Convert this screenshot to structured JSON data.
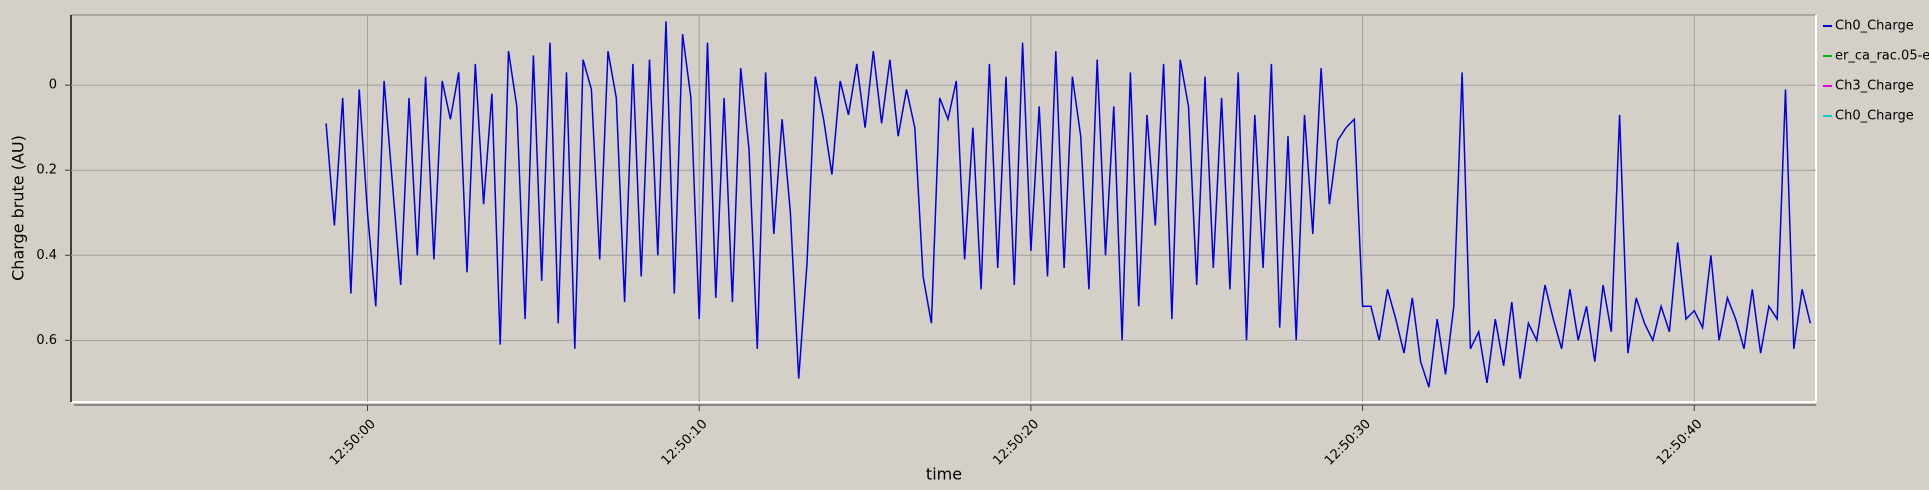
{
  "chart_data": {
    "type": "line",
    "ylabel": "Charge brute (AU)",
    "xlabel": "time",
    "xlim": [
      -8.94,
      43.67
    ],
    "ylim": [
      -0.745,
      0.165
    ],
    "xticks": [
      {
        "value": 0,
        "label": "12:50:00"
      },
      {
        "value": 10,
        "label": "12:50:10"
      },
      {
        "value": 20,
        "label": "12:50:20"
      },
      {
        "value": 30,
        "label": "12:50:30"
      },
      {
        "value": 40,
        "label": "12:50:40"
      }
    ],
    "yticks": [
      {
        "value": -0.6,
        "label": "0.6"
      },
      {
        "value": -0.4,
        "label": "0.4"
      },
      {
        "value": -0.2,
        "label": "0.2"
      },
      0
    ],
    "grid": true,
    "x": [
      -1.25,
      -1,
      -0.75,
      -0.5,
      -0.25,
      0,
      0.25,
      0.5,
      0.75,
      1,
      1.25,
      1.5,
      1.75,
      2,
      2.25,
      2.5,
      2.75,
      3,
      3.25,
      3.5,
      3.75,
      4,
      4.25,
      4.5,
      4.75,
      5,
      5.25,
      5.5,
      5.75,
      6,
      6.25,
      6.5,
      6.75,
      7,
      7.25,
      7.5,
      7.75,
      8,
      8.25,
      8.5,
      8.75,
      9,
      9.25,
      9.5,
      9.75,
      10,
      10.25,
      10.5,
      10.75,
      11,
      11.25,
      11.5,
      11.75,
      12,
      12.25,
      12.5,
      12.75,
      13,
      13.25,
      13.5,
      13.75,
      14,
      14.25,
      14.5,
      14.75,
      15,
      15.25,
      15.5,
      15.75,
      16,
      16.25,
      16.5,
      16.75,
      17,
      17.25,
      17.5,
      17.75,
      18,
      18.25,
      18.5,
      18.75,
      19,
      19.25,
      19.5,
      19.75,
      20,
      20.25,
      20.5,
      20.75,
      21,
      21.25,
      21.5,
      21.75,
      22,
      22.25,
      22.5,
      22.75,
      23,
      23.25,
      23.5,
      23.75,
      24,
      24.25,
      24.5,
      24.75,
      25,
      25.25,
      25.5,
      25.75,
      26,
      26.25,
      26.5,
      26.75,
      27,
      27.25,
      27.5,
      27.75,
      28,
      28.25,
      28.5,
      28.75,
      29,
      29.25,
      29.5,
      29.75,
      30,
      30.25,
      30.5,
      30.75,
      31,
      31.25,
      31.5,
      31.75,
      32,
      32.25,
      32.5,
      32.75,
      33,
      33.25,
      33.5,
      33.75,
      34,
      34.25,
      34.5,
      34.75,
      35,
      35.25,
      35.5,
      35.75,
      36,
      36.25,
      36.5,
      36.75,
      37,
      37.25,
      37.5,
      37.75,
      38,
      38.25,
      38.5,
      38.75,
      39,
      39.25,
      39.5,
      39.75,
      40,
      40.25,
      40.5,
      40.75,
      41,
      41.25,
      41.5,
      41.75,
      42,
      42.25,
      42.5,
      42.75,
      43,
      43.25,
      43.5
    ],
    "series": [
      {
        "name": "Ch0_Charge",
        "color": "#0000e0",
        "values": [
          -0.09,
          -0.33,
          -0.03,
          -0.49,
          -0.01,
          -0.3,
          -0.52,
          0.01,
          -0.23,
          -0.47,
          -0.03,
          -0.4,
          0.02,
          -0.41,
          0.01,
          -0.08,
          0.03,
          -0.44,
          0.05,
          -0.28,
          -0.02,
          -0.61,
          0.08,
          -0.05,
          -0.55,
          0.07,
          -0.46,
          0.1,
          -0.56,
          0.03,
          -0.62,
          0.06,
          -0.01,
          -0.41,
          0.08,
          -0.03,
          -0.51,
          0.05,
          -0.45,
          0.06,
          -0.4,
          0.15,
          -0.49,
          0.12,
          -0.03,
          -0.55,
          0.1,
          -0.5,
          -0.03,
          -0.51,
          0.04,
          -0.15,
          -0.62,
          0.03,
          -0.35,
          -0.08,
          -0.3,
          -0.69,
          -0.42,
          0.02,
          -0.08,
          -0.21,
          0.01,
          -0.07,
          0.05,
          -0.1,
          0.08,
          -0.09,
          0.06,
          -0.12,
          -0.01,
          -0.1,
          -0.45,
          -0.56,
          -0.03,
          -0.08,
          0.01,
          -0.41,
          -0.1,
          -0.48,
          0.05,
          -0.43,
          0.02,
          -0.47,
          0.1,
          -0.39,
          -0.05,
          -0.45,
          0.08,
          -0.43,
          0.02,
          -0.12,
          -0.48,
          0.06,
          -0.4,
          -0.05,
          -0.6,
          0.03,
          -0.52,
          -0.07,
          -0.33,
          0.05,
          -0.55,
          0.06,
          -0.05,
          -0.47,
          0.02,
          -0.43,
          -0.03,
          -0.48,
          0.03,
          -0.6,
          -0.07,
          -0.43,
          0.05,
          -0.57,
          -0.12,
          -0.6,
          -0.07,
          -0.35,
          0.04,
          -0.28,
          -0.13,
          -0.1,
          -0.08,
          -0.52,
          -0.52,
          -0.6,
          -0.48,
          -0.55,
          -0.63,
          -0.5,
          -0.65,
          -0.71,
          -0.55,
          -0.68,
          -0.52,
          0.03,
          -0.62,
          -0.58,
          -0.7,
          -0.55,
          -0.66,
          -0.51,
          -0.69,
          -0.56,
          -0.6,
          -0.47,
          -0.55,
          -0.62,
          -0.48,
          -0.6,
          -0.52,
          -0.65,
          -0.47,
          -0.58,
          -0.07,
          -0.63,
          -0.5,
          -0.56,
          -0.6,
          -0.52,
          -0.58,
          -0.37,
          -0.55,
          -0.53,
          -0.57,
          -0.4,
          -0.6,
          -0.5,
          -0.55,
          -0.62,
          -0.48,
          -0.63,
          -0.52,
          -0.55,
          -0.01,
          -0.62,
          -0.48,
          -0.56
        ]
      }
    ],
    "hidden_series": [
      {
        "name": "er_ca_rac.05-e",
        "color": "#00c000"
      },
      {
        "name": "Ch3_Charge",
        "color": "#e000e0"
      },
      {
        "name": "Ch0_Charge",
        "color": "#00d0d0"
      }
    ]
  }
}
